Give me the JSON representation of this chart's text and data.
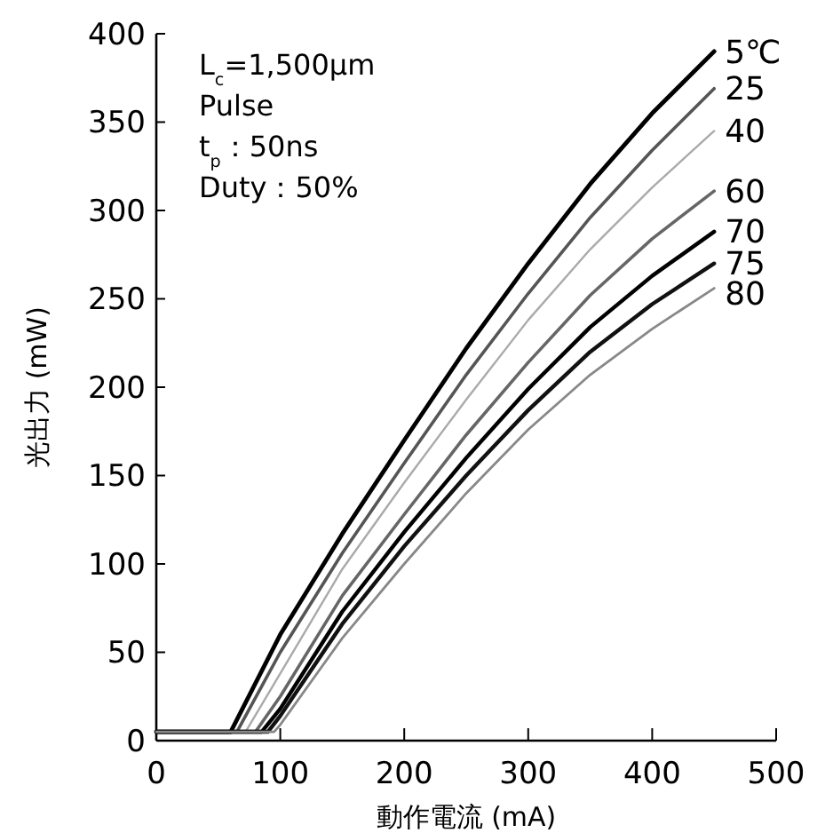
{
  "chart_data": {
    "type": "line",
    "xlabel": "動作電流 (mA)",
    "ylabel": "光出力 (mW)",
    "xlim": [
      0,
      500
    ],
    "xticks": [
      0,
      100,
      200,
      300,
      400,
      500
    ],
    "ylim": [
      0,
      400
    ],
    "yticks": [
      0,
      50,
      100,
      150,
      200,
      250,
      300,
      350,
      400
    ],
    "grid": false,
    "line_style": "solid",
    "annotations": [
      "L$_{c}$=1,500μm",
      "Pulse",
      "t$_{p}$：50ns",
      "Duty：50%"
    ],
    "series": [
      {
        "name": "5℃",
        "color": "#000000",
        "x": [
          0,
          60,
          100,
          150,
          200,
          250,
          300,
          350,
          400,
          450
        ],
        "values": [
          5,
          5,
          60,
          117,
          170,
          222,
          270,
          315,
          355,
          390
        ]
      },
      {
        "name": "25",
        "color": "#555555",
        "x": [
          0,
          65,
          100,
          150,
          200,
          250,
          300,
          350,
          400,
          450
        ],
        "values": [
          5,
          5,
          50,
          106,
          157,
          207,
          253,
          296,
          334,
          369
        ]
      },
      {
        "name": "40",
        "color": "#aaaaaa",
        "x": [
          0,
          72,
          100,
          150,
          200,
          250,
          300,
          350,
          400,
          450
        ],
        "values": [
          5,
          5,
          38,
          97,
          146,
          193,
          238,
          278,
          313,
          345
        ]
      },
      {
        "name": "60",
        "color": "#666666",
        "x": [
          0,
          80,
          100,
          150,
          200,
          250,
          300,
          350,
          400,
          450
        ],
        "values": [
          5,
          5,
          25,
          82,
          128,
          173,
          214,
          252,
          284,
          311
        ]
      },
      {
        "name": "70",
        "color": "#000000",
        "x": [
          0,
          85,
          100,
          150,
          200,
          250,
          300,
          350,
          400,
          450
        ],
        "values": [
          5,
          5,
          18,
          73,
          118,
          160,
          199,
          234,
          263,
          288
        ]
      },
      {
        "name": "75",
        "color": "#111111",
        "x": [
          0,
          90,
          100,
          150,
          200,
          250,
          300,
          350,
          400,
          450
        ],
        "values": [
          5,
          5,
          14,
          66,
          110,
          150,
          187,
          220,
          247,
          270
        ]
      },
      {
        "name": "80",
        "color": "#888888",
        "x": [
          0,
          95,
          100,
          150,
          200,
          250,
          300,
          350,
          400,
          450
        ],
        "values": [
          5,
          5,
          9,
          58,
          100,
          140,
          176,
          207,
          233,
          256
        ]
      }
    ]
  }
}
